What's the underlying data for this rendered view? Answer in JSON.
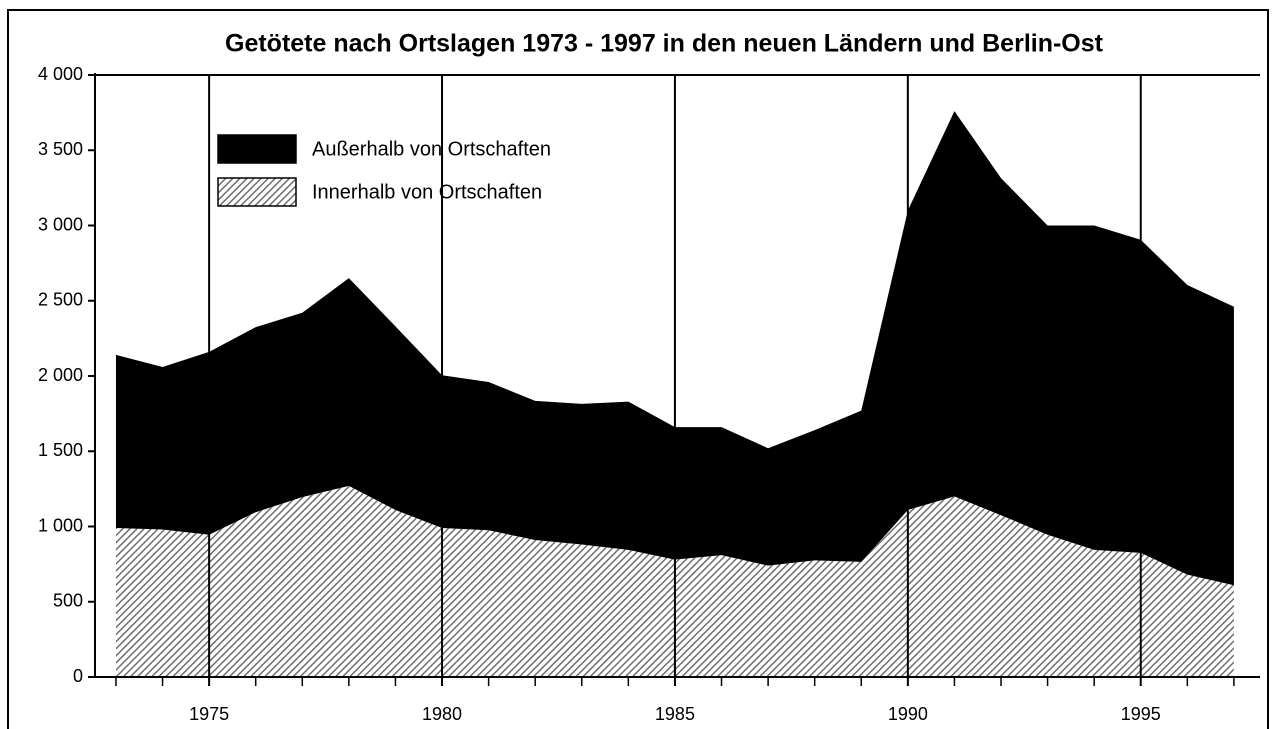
{
  "chart_data": {
    "type": "stacked_area",
    "title": "Getötete nach Ortslagen 1973 - 1997 in den neuen Ländern und Berlin-Ost",
    "x": [
      1973,
      1974,
      1975,
      1976,
      1977,
      1978,
      1979,
      1980,
      1981,
      1982,
      1983,
      1984,
      1985,
      1986,
      1987,
      1988,
      1989,
      1990,
      1991,
      1992,
      1993,
      1994,
      1995,
      1996,
      1997
    ],
    "series": [
      {
        "name": "Außerhalb von Ortschaften",
        "color": "#000000",
        "values": [
          1150,
          1080,
          1215,
          1230,
          1225,
          1380,
          1220,
          1015,
          985,
          925,
          935,
          985,
          880,
          850,
          780,
          865,
          1005,
          1990,
          2560,
          2240,
          2055,
          2155,
          2080,
          1925,
          1850
        ]
      },
      {
        "name": "Innerhalb von Ortschaften",
        "color": "#6e6e6e",
        "hatch": true,
        "values": [
          990,
          980,
          945,
          1095,
          1195,
          1270,
          1110,
          990,
          975,
          910,
          880,
          845,
          780,
          810,
          740,
          775,
          765,
          1110,
          1200,
          1075,
          945,
          845,
          825,
          680,
          610
        ]
      }
    ],
    "xlim": [
      1972.55,
      1997.56
    ],
    "xticks": [
      1975,
      1980,
      1985,
      1990,
      1995
    ],
    "ylim": [
      0,
      4000
    ],
    "yticks": [
      0,
      500,
      {
        "value": 1000,
        "label": "1 000"
      },
      {
        "value": 1500,
        "label": "1 500"
      },
      {
        "value": 2000,
        "label": "2 000"
      },
      {
        "value": 2500,
        "label": "2 500"
      },
      {
        "value": 3000,
        "label": "3 000"
      },
      {
        "value": 3500,
        "label": "3 500"
      },
      {
        "value": 4000,
        "label": "4 000"
      }
    ],
    "grid": "x",
    "legend": "upper left"
  }
}
